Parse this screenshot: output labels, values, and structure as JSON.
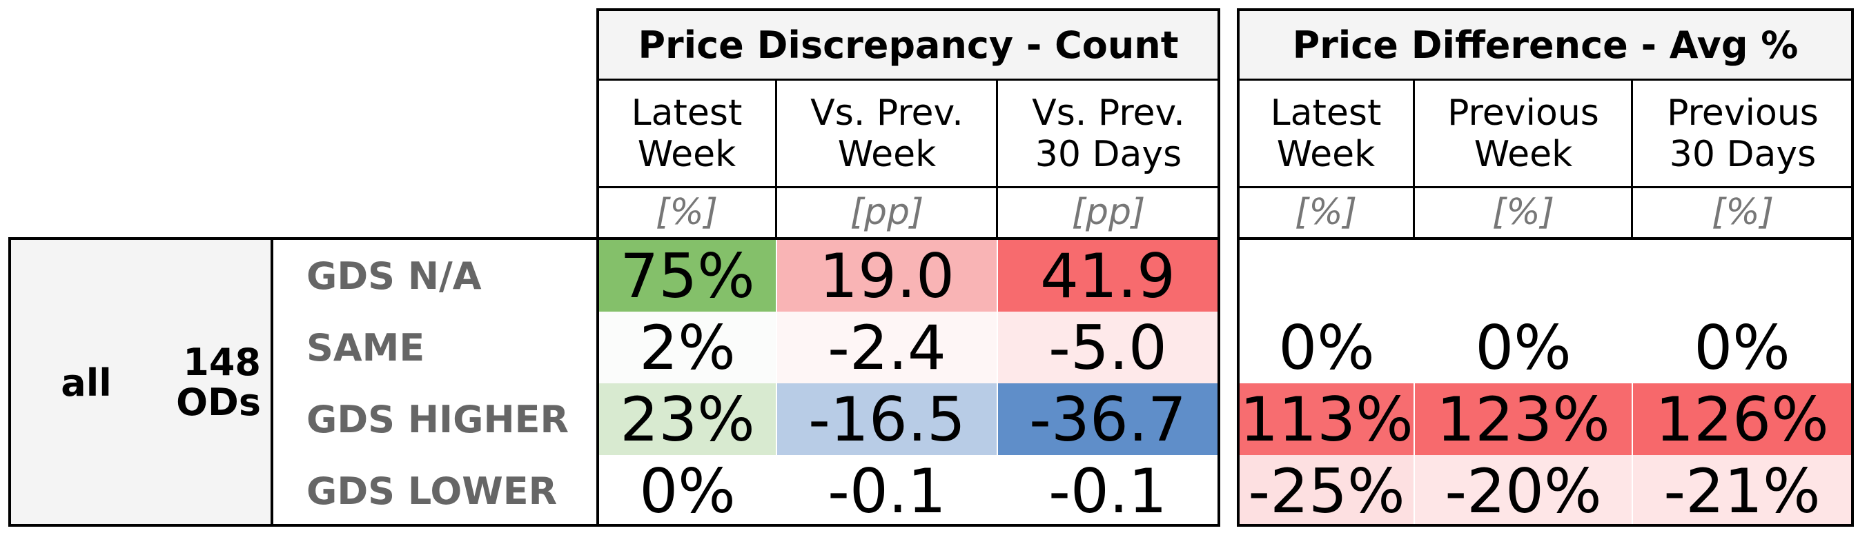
{
  "groups": {
    "count": {
      "title": "Price Discrepancy - Count",
      "columns": [
        {
          "label": "Latest\nWeek",
          "unit": "[%]"
        },
        {
          "label": "Vs. Prev.\nWeek",
          "unit": "[pp]"
        },
        {
          "label": "Vs. Prev.\n30 Days",
          "unit": "[pp]"
        }
      ]
    },
    "avg": {
      "title": "Price Difference - Avg %",
      "columns": [
        {
          "label": "Latest\nWeek",
          "unit": "[%]"
        },
        {
          "label": "Previous\nWeek",
          "unit": "[%]"
        },
        {
          "label": "Previous\n30 Days",
          "unit": "[%]"
        }
      ]
    }
  },
  "segment": {
    "name": "all",
    "ods": "148\nODs"
  },
  "rows": [
    {
      "label": "GDS N/A",
      "count": [
        "75%",
        "19.0",
        "41.9"
      ],
      "count_colors": [
        "#84c06a",
        "#f9b4b5",
        "#f76b6e"
      ],
      "avg": [
        "",
        "",
        ""
      ],
      "avg_colors": [
        "#ffffff",
        "#ffffff",
        "#ffffff"
      ]
    },
    {
      "label": "SAME",
      "count": [
        "2%",
        "-2.4",
        "-5.0"
      ],
      "count_colors": [
        "#fbfcfb",
        "#fef6f6",
        "#fee9ea"
      ],
      "avg": [
        "0%",
        "0%",
        "0%"
      ],
      "avg_colors": [
        "#ffffff",
        "#ffffff",
        "#ffffff"
      ]
    },
    {
      "label": "GDS HIGHER",
      "count": [
        "23%",
        "-16.5",
        "-36.7"
      ],
      "count_colors": [
        "#d8ead0",
        "#b8cce6",
        "#5f8ec9"
      ],
      "avg": [
        "113%",
        "123%",
        "126%"
      ],
      "avg_colors": [
        "#f76d70",
        "#f76a6d",
        "#f7686b"
      ]
    },
    {
      "label": "GDS LOWER",
      "count": [
        "0%",
        "-0.1",
        "-0.1"
      ],
      "count_colors": [
        "#ffffff",
        "#ffffff",
        "#ffffff"
      ],
      "avg": [
        "-25%",
        "-20%",
        "-21%"
      ],
      "avg_colors": [
        "#fde0e1",
        "#fee6e7",
        "#fee5e6"
      ]
    }
  ]
}
